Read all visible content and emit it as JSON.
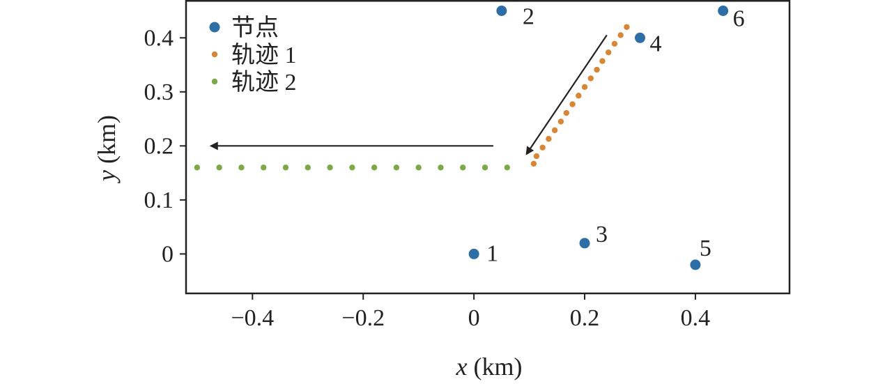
{
  "chart_data": {
    "type": "scatter",
    "xlabel_var": "x",
    "xlabel_unit": "(km)",
    "ylabel_var": "y",
    "ylabel_unit": "(km)",
    "xlim": [
      -0.52,
      0.57
    ],
    "ylim": [
      -0.073,
      0.47
    ],
    "xticks": [
      -0.4,
      -0.2,
      0,
      0.2,
      0.4
    ],
    "xtick_labels": [
      "−0.4",
      "−0.2",
      "0",
      "0.2",
      "0.4"
    ],
    "yticks": [
      0,
      0.1,
      0.2,
      0.3,
      0.4
    ],
    "ytick_labels": [
      "0",
      "0.1",
      "0.2",
      "0.3",
      "0.4"
    ],
    "legend_position": "top-left",
    "series": [
      {
        "name": "节点",
        "color": "#2e6ea6",
        "points": [
          {
            "label": "1",
            "x": 0.0,
            "y": 0.0
          },
          {
            "label": "2",
            "x": 0.05,
            "y": 0.45
          },
          {
            "label": "3",
            "x": 0.2,
            "y": 0.02
          },
          {
            "label": "4",
            "x": 0.3,
            "y": 0.4
          },
          {
            "label": "5",
            "x": 0.4,
            "y": -0.02
          },
          {
            "label": "6",
            "x": 0.45,
            "y": 0.45
          }
        ]
      },
      {
        "name": "轨迹 1",
        "color": "#d98536",
        "points": [
          {
            "x": 0.276,
            "y": 0.42
          },
          {
            "x": 0.265,
            "y": 0.405
          },
          {
            "x": 0.254,
            "y": 0.389
          },
          {
            "x": 0.243,
            "y": 0.373
          },
          {
            "x": 0.232,
            "y": 0.357
          },
          {
            "x": 0.222,
            "y": 0.341
          },
          {
            "x": 0.211,
            "y": 0.325
          },
          {
            "x": 0.2,
            "y": 0.309
          },
          {
            "x": 0.189,
            "y": 0.293
          },
          {
            "x": 0.178,
            "y": 0.277
          },
          {
            "x": 0.167,
            "y": 0.261
          },
          {
            "x": 0.157,
            "y": 0.245
          },
          {
            "x": 0.146,
            "y": 0.229
          },
          {
            "x": 0.135,
            "y": 0.213
          },
          {
            "x": 0.124,
            "y": 0.197
          },
          {
            "x": 0.113,
            "y": 0.181
          },
          {
            "x": 0.108,
            "y": 0.167
          }
        ]
      },
      {
        "name": "轨迹 2",
        "color": "#7aaa48",
        "points": [
          {
            "x": 0.06,
            "y": 0.16
          },
          {
            "x": 0.02,
            "y": 0.16
          },
          {
            "x": -0.02,
            "y": 0.16
          },
          {
            "x": -0.06,
            "y": 0.16
          },
          {
            "x": -0.1,
            "y": 0.16
          },
          {
            "x": -0.14,
            "y": 0.16
          },
          {
            "x": -0.18,
            "y": 0.16
          },
          {
            "x": -0.22,
            "y": 0.16
          },
          {
            "x": -0.26,
            "y": 0.16
          },
          {
            "x": -0.3,
            "y": 0.16
          },
          {
            "x": -0.34,
            "y": 0.16
          },
          {
            "x": -0.38,
            "y": 0.16
          },
          {
            "x": -0.42,
            "y": 0.16
          },
          {
            "x": -0.46,
            "y": 0.16
          },
          {
            "x": -0.5,
            "y": 0.16
          }
        ]
      }
    ],
    "arrows": [
      {
        "from": [
          0.24,
          0.405
        ],
        "to": [
          0.095,
          0.185
        ]
      },
      {
        "from": [
          0.035,
          0.2
        ],
        "to": [
          -0.475,
          0.2
        ]
      }
    ]
  }
}
